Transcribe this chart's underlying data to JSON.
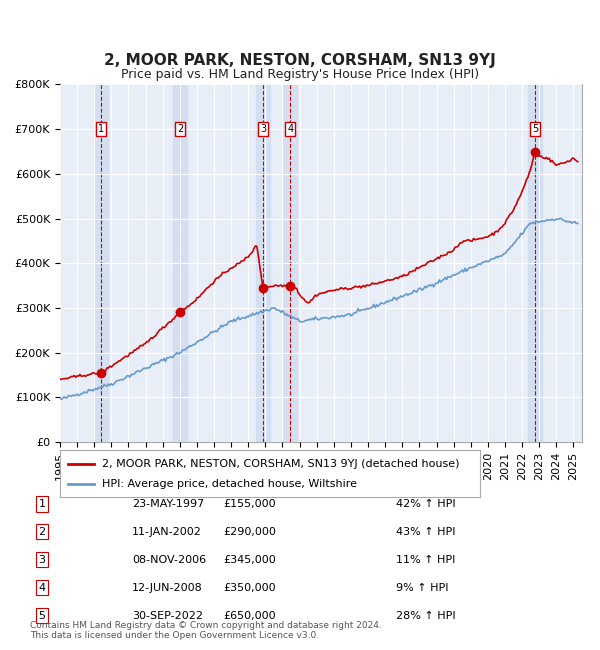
{
  "title": "2, MOOR PARK, NESTON, CORSHAM, SN13 9YJ",
  "subtitle": "Price paid vs. HM Land Registry's House Price Index (HPI)",
  "xlabel": "",
  "ylabel": "",
  "ylim": [
    0,
    800000
  ],
  "yticks": [
    0,
    100000,
    200000,
    300000,
    400000,
    500000,
    600000,
    700000,
    800000
  ],
  "ytick_labels": [
    "£0",
    "£100K",
    "£200K",
    "£300K",
    "£400K",
    "£500K",
    "£600K",
    "£700K",
    "£800K"
  ],
  "xlim_start": 1995.0,
  "xlim_end": 2025.5,
  "background_color": "#ffffff",
  "plot_bg_color": "#e8eef8",
  "grid_color": "#ffffff",
  "sale_color": "#cc0000",
  "hpi_color": "#6699cc",
  "sale_marker_color": "#cc0000",
  "vline_color": "#cc0000",
  "vband_color": "#d0ddf0",
  "legend_box_color": "#ffffff",
  "legend_border_color": "#aaaaaa",
  "title_fontsize": 11,
  "subtitle_fontsize": 9,
  "tick_fontsize": 8,
  "legend_fontsize": 8,
  "table_fontsize": 8,
  "footer_fontsize": 6.5,
  "purchases": [
    {
      "num": 1,
      "date_label": "23-MAY-1997",
      "date_x": 1997.39,
      "price": 155000,
      "hpi_pct": "42%",
      "arrow": "↑"
    },
    {
      "num": 2,
      "date_label": "11-JAN-2002",
      "date_x": 2002.03,
      "price": 290000,
      "hpi_pct": "43%",
      "arrow": "↑"
    },
    {
      "num": 3,
      "date_label": "08-NOV-2006",
      "date_x": 2006.86,
      "price": 345000,
      "hpi_pct": "11%",
      "arrow": "↑"
    },
    {
      "num": 4,
      "date_label": "12-JUN-2008",
      "date_x": 2008.45,
      "price": 350000,
      "hpi_pct": "9%",
      "arrow": "↑"
    },
    {
      "num": 5,
      "date_label": "30-SEP-2022",
      "date_x": 2022.75,
      "price": 650000,
      "hpi_pct": "28%",
      "arrow": "↑"
    }
  ],
  "legend_line1": "2, MOOR PARK, NESTON, CORSHAM, SN13 9YJ (detached house)",
  "legend_line2": "HPI: Average price, detached house, Wiltshire",
  "footer": "Contains HM Land Registry data © Crown copyright and database right 2024.\nThis data is licensed under the Open Government Licence v3.0."
}
